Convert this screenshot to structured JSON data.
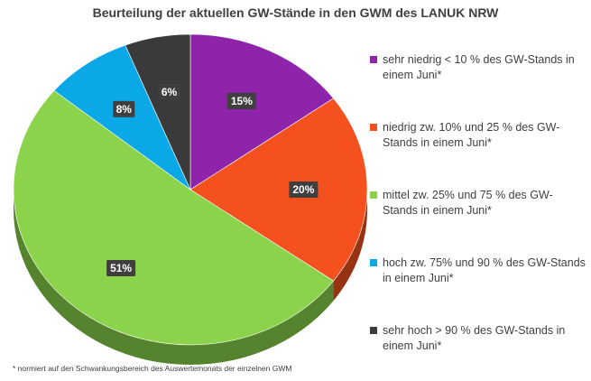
{
  "chart_data": {
    "type": "pie",
    "title": "Beurteilung der aktuellen GW-Stände in den GWM des LANUK NRW",
    "slices": [
      {
        "label": "sehr niedrig < 10 % des GW-Stands in einem Juni*",
        "value": 15,
        "value_label": "15%",
        "color": "#8E24AA"
      },
      {
        "label": "niedrig zw. 10% und 25 % des GW-Stands in einem Juni*",
        "value": 20,
        "value_label": "20%",
        "color": "#F4511E"
      },
      {
        "label": "mittel zw. 25% und 75 % des GW-Stands in einem Juni*",
        "value": 51,
        "value_label": "51%",
        "color": "#8BD34A"
      },
      {
        "label": "hoch zw. 75% und 90 % des GW-Stands in einem Juni*",
        "value": 8,
        "value_label": "8%",
        "color": "#0AA8E6"
      },
      {
        "label": "sehr hoch > 90 % des GW-Stands in einem Juni*",
        "value": 6,
        "value_label": "6%",
        "color": "#3A3A3A"
      }
    ],
    "legend_position": "right",
    "style": "3d"
  },
  "footnote": "* normiert auf den Schwankungsbereich des Auswertemonats der einzelnen GWM"
}
